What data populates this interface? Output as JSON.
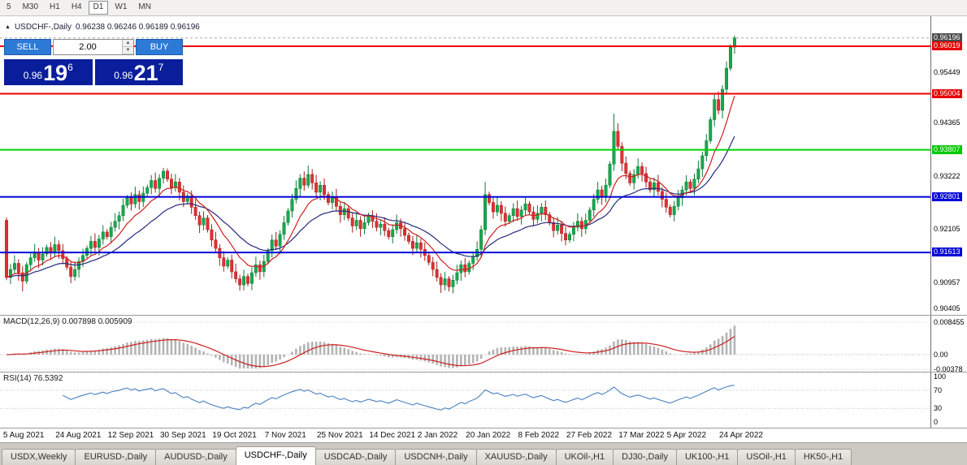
{
  "toolbar": {
    "periods": [
      {
        "label": "5",
        "active": false
      },
      {
        "label": "M30",
        "active": false
      },
      {
        "label": "H1",
        "active": false
      },
      {
        "label": "H4",
        "active": false
      },
      {
        "label": "D1",
        "active": true
      },
      {
        "label": "W1",
        "active": false
      },
      {
        "label": "MN",
        "active": false
      }
    ]
  },
  "chart_header": {
    "collapse_arrow": "▲",
    "symbol": "USDCHF-,Daily",
    "ohlc": "0.96238 0.96246 0.96189 0.96196"
  },
  "trade_panel": {
    "sell_label": "SELL",
    "buy_label": "BUY",
    "volume": "2.00",
    "spinner_up": "▲",
    "spinner_down": "▼",
    "sell_price": {
      "prefix": "0.96",
      "big": "19",
      "sup": "6"
    },
    "buy_price": {
      "prefix": "0.96",
      "big": "21",
      "sup": "7"
    }
  },
  "colors": {
    "up_candle": "#17a94e",
    "up_stroke": "#0b7c36",
    "down_candle": "#e03232",
    "down_stroke": "#a61b1b",
    "ma_fast": "#cc2020",
    "ma_slow": "#232a7c",
    "hline_red": "#f00000",
    "hline_green": "#00d400",
    "hline_blue": "#0000d8",
    "macd_hist": "#b4b4b4",
    "macd_signal": "#cc2020",
    "rsi_line": "#4a80c0"
  },
  "price_axis": {
    "labels": [
      {
        "text": "0.96196",
        "price": 0.96196,
        "style": "current"
      },
      {
        "text": "0.96019",
        "price": 0.96019,
        "style": "red"
      },
      {
        "text": "0.95449",
        "price": 0.95449,
        "style": "plain"
      },
      {
        "text": "0.95004",
        "price": 0.95004,
        "style": "red"
      },
      {
        "text": "0.94365",
        "price": 0.94365,
        "style": "plain"
      },
      {
        "text": "0.93807",
        "price": 0.93807,
        "style": "green"
      },
      {
        "text": "0.93222",
        "price": 0.93222,
        "style": "plain"
      },
      {
        "text": "0.92801",
        "price": 0.92801,
        "style": "blue"
      },
      {
        "text": "0.92105",
        "price": 0.92105,
        "style": "plain"
      },
      {
        "text": "0.91613",
        "price": 0.91613,
        "style": "blue"
      },
      {
        "text": "0.90957",
        "price": 0.90957,
        "style": "plain"
      },
      {
        "text": "0.90405",
        "price": 0.90405,
        "style": "plain"
      }
    ]
  },
  "macd_panel": {
    "label": "MACD(12,26,9) 0.007898 0.005909",
    "axis_labels": [
      {
        "text": "0.008455",
        "value": 0.008455
      },
      {
        "text": "0.00",
        "value": 0
      },
      {
        "text": "-0.00378",
        "value": -0.00378
      }
    ]
  },
  "rsi_panel": {
    "label": "RSI(14) 76.5392",
    "axis_labels": [
      {
        "text": "100",
        "value": 100
      },
      {
        "text": "70",
        "value": 70
      },
      {
        "text": "30",
        "value": 30
      },
      {
        "text": "0",
        "value": 0
      }
    ],
    "level_lines": [
      70,
      30
    ]
  },
  "date_axis": {
    "labels": [
      {
        "text": "5 Aug 2021",
        "idx": 2
      },
      {
        "text": "24 Aug 2021",
        "idx": 15
      },
      {
        "text": "12 Sep 2021",
        "idx": 28
      },
      {
        "text": "30 Sep 2021",
        "idx": 41
      },
      {
        "text": "19 Oct 2021",
        "idx": 54
      },
      {
        "text": "7 Nov 2021",
        "idx": 67
      },
      {
        "text": "25 Nov 2021",
        "idx": 80
      },
      {
        "text": "14 Dec 2021",
        "idx": 93
      },
      {
        "text": "2 Jan 2022",
        "idx": 105
      },
      {
        "text": "20 Jan 2022",
        "idx": 117
      },
      {
        "text": "8 Feb 2022",
        "idx": 130
      },
      {
        "text": "27 Feb 2022",
        "idx": 142
      },
      {
        "text": "17 Mar 2022",
        "idx": 155
      },
      {
        "text": "5 Apr 2022",
        "idx": 167
      },
      {
        "text": "24 Apr 2022",
        "idx": 180
      }
    ]
  },
  "tabs": {
    "items": [
      {
        "label": "USDX,Weekly",
        "active": false
      },
      {
        "label": "EURUSD-,Daily",
        "active": false
      },
      {
        "label": "AUDUSD-,Daily",
        "active": false
      },
      {
        "label": "USDCHF-,Daily",
        "active": true
      },
      {
        "label": "USDCAD-,Daily",
        "active": false
      },
      {
        "label": "USDCNH-,Daily",
        "active": false
      },
      {
        "label": "XAUUSD-,Daily",
        "active": false
      },
      {
        "label": "UKOil-,H1",
        "active": false
      },
      {
        "label": "DJ30-,Daily",
        "active": false
      },
      {
        "label": "UK100-,H1",
        "active": false
      },
      {
        "label": "USOil-,H1",
        "active": false
      },
      {
        "label": "HK50-,H1",
        "active": false
      }
    ]
  },
  "chart_data": {
    "type": "candlestick",
    "symbol": "USDCHF-",
    "timeframe": "Daily",
    "current_price": 0.96196,
    "ohlc_display": {
      "open": 0.96238,
      "high": 0.96246,
      "low": 0.96189,
      "close": 0.96196
    },
    "price_range": {
      "top": 0.9632,
      "bottom": 0.9032
    },
    "first_open": 0.923,
    "closes": [
      0.9108,
      0.9125,
      0.9138,
      0.9118,
      0.91,
      0.9135,
      0.915,
      0.9162,
      0.9145,
      0.9158,
      0.9172,
      0.916,
      0.9178,
      0.9165,
      0.9148,
      0.913,
      0.911,
      0.9125,
      0.9142,
      0.9155,
      0.917,
      0.9185,
      0.9172,
      0.919,
      0.9205,
      0.9195,
      0.9215,
      0.9228,
      0.924,
      0.9262,
      0.9278,
      0.9265,
      0.9285,
      0.927,
      0.9288,
      0.93,
      0.9315,
      0.9298,
      0.932,
      0.9335,
      0.9318,
      0.93,
      0.9312,
      0.929,
      0.927,
      0.9282,
      0.9258,
      0.924,
      0.922,
      0.9235,
      0.921,
      0.9188,
      0.917,
      0.915,
      0.9132,
      0.9145,
      0.912,
      0.9105,
      0.9092,
      0.911,
      0.9095,
      0.9118,
      0.9135,
      0.912,
      0.9142,
      0.9165,
      0.9188,
      0.9175,
      0.92,
      0.9225,
      0.925,
      0.9275,
      0.9298,
      0.932,
      0.9305,
      0.9328,
      0.931,
      0.929,
      0.9305,
      0.9285,
      0.9268,
      0.928,
      0.926,
      0.9242,
      0.9255,
      0.9235,
      0.9218,
      0.923,
      0.9212,
      0.9225,
      0.924,
      0.9228,
      0.9215,
      0.9222,
      0.9208,
      0.9195,
      0.921,
      0.9225,
      0.9212,
      0.9198,
      0.9185,
      0.917,
      0.9182,
      0.9168,
      0.9155,
      0.914,
      0.9125,
      0.9108,
      0.9092,
      0.9105,
      0.9088,
      0.9102,
      0.9118,
      0.9135,
      0.912,
      0.9138,
      0.9152,
      0.9168,
      0.921,
      0.9285,
      0.9268,
      0.9248,
      0.9262,
      0.9245,
      0.9228,
      0.924,
      0.9255,
      0.9238,
      0.9252,
      0.9265,
      0.9248,
      0.9232,
      0.9245,
      0.9258,
      0.9242,
      0.9225,
      0.9208,
      0.922,
      0.9202,
      0.9188,
      0.92,
      0.9215,
      0.9228,
      0.9212,
      0.923,
      0.9252,
      0.9275,
      0.9295,
      0.928,
      0.9305,
      0.935,
      0.942,
      0.9388,
      0.9352,
      0.933,
      0.931,
      0.9328,
      0.9345,
      0.933,
      0.9312,
      0.9295,
      0.931,
      0.9292,
      0.9275,
      0.9258,
      0.9242,
      0.926,
      0.9278,
      0.9295,
      0.9312,
      0.9298,
      0.9318,
      0.934,
      0.9368,
      0.94,
      0.9445,
      0.9488,
      0.9465,
      0.951,
      0.9555,
      0.96,
      0.96196
    ],
    "wick_overrides": [
      {
        "i": 4,
        "l": 0.9078
      },
      {
        "i": 39,
        "h": 0.9342
      },
      {
        "i": 58,
        "l": 0.908
      },
      {
        "i": 75,
        "h": 0.9347
      },
      {
        "i": 110,
        "l": 0.9078
      },
      {
        "i": 119,
        "h": 0.9312
      },
      {
        "i": 151,
        "h": 0.9458
      },
      {
        "i": 181,
        "h": 0.9625
      }
    ],
    "horizontal_lines": [
      {
        "price": 0.96019,
        "color": "red"
      },
      {
        "price": 0.95004,
        "color": "red"
      },
      {
        "price": 0.93807,
        "color": "green"
      },
      {
        "price": 0.92801,
        "color": "blue"
      },
      {
        "price": 0.91613,
        "color": "blue"
      }
    ],
    "indicators": {
      "macd": {
        "params": "12,26,9",
        "values": [
          0.007898,
          0.005909
        ]
      },
      "rsi": {
        "params": "14",
        "value": 76.5392
      },
      "moving_averages": [
        {
          "period": 10,
          "color": "red"
        },
        {
          "period": 24,
          "color": "navy"
        }
      ]
    }
  }
}
